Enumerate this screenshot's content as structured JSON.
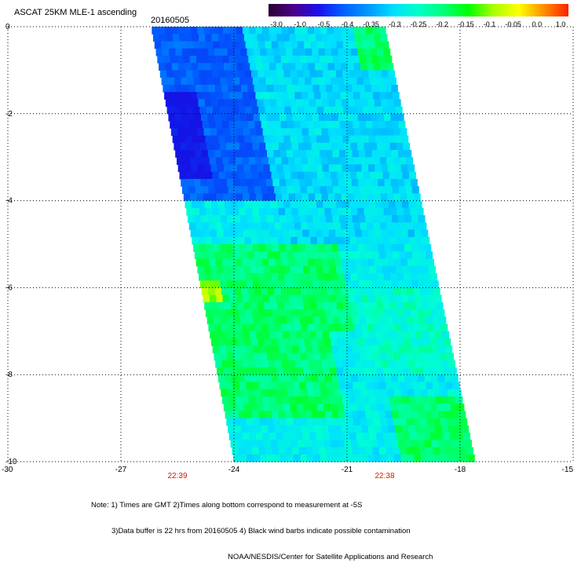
{
  "header": {
    "title": "ASCAT 25KM MLE-1 ascending",
    "date": "20160505"
  },
  "colorbar": {
    "labels": [
      "-3.0",
      "-1.0",
      "-0.5",
      "-0.4",
      "-0.35",
      "-0.3",
      "-0.25",
      "-0.2",
      "-0.15",
      "-0.1",
      "-0.05",
      "0.0",
      "1.0"
    ],
    "colors": [
      "#2a0030",
      "#4b0088",
      "#1a10ee",
      "#0060ff",
      "#0098ff",
      "#00e0ff",
      "#00ffc8",
      "#00ff78",
      "#00ff00",
      "#a8ff00",
      "#ffff00",
      "#ff9000",
      "#ff2000"
    ]
  },
  "notes": {
    "line1": "Note: 1) Times are GMT 2)Times along bottom correspond to measurement at -5S",
    "line2": "3)Data buffer is 22 hrs from 20160505 4) Black wind barbs indicate possible contamination",
    "line3": "NOAA/NESDIS/Center for Satellite Applications and Research"
  },
  "chart_data": {
    "type": "heatmap",
    "x_ticks": [
      {
        "value": -30,
        "label": "-30"
      },
      {
        "value": -27,
        "label": "-27"
      },
      {
        "value": -24,
        "label": "-24"
      },
      {
        "value": -21,
        "label": "-21"
      },
      {
        "value": -18,
        "label": "-18"
      },
      {
        "value": -15,
        "label": "-15"
      }
    ],
    "y_ticks": [
      {
        "value": 0,
        "label": "0"
      },
      {
        "value": -2,
        "label": "-2"
      },
      {
        "value": -4,
        "label": "-4"
      },
      {
        "value": -6,
        "label": "-6"
      },
      {
        "value": -8,
        "label": "-8"
      },
      {
        "value": -10,
        "label": "-10"
      }
    ],
    "xlim": [
      -30,
      -15
    ],
    "ylim": [
      -10,
      0
    ],
    "grid": true,
    "time_labels": [
      {
        "lon": -25.5,
        "label": "22:39"
      },
      {
        "lon": -20.0,
        "label": "22:38"
      }
    ],
    "swath": {
      "top_left_lon": -26.2,
      "top_right_lon": -20.0,
      "bottom_left_lon": -24.0,
      "bottom_right_lon": -17.6,
      "lat_top": 0,
      "lat_bottom": -10
    },
    "regions": [
      {
        "lat": [
          0,
          -4
        ],
        "lon_frac": [
          0,
          0.4
        ],
        "value": -0.4
      },
      {
        "lat": [
          -1.5,
          -3.5
        ],
        "lon_frac": [
          0,
          0.15
        ],
        "value": -0.5
      },
      {
        "lat": [
          0,
          -5
        ],
        "lon_frac": [
          0.4,
          1
        ],
        "value": -0.3
      },
      {
        "lat": [
          0,
          -1
        ],
        "lon_frac": [
          0.85,
          1
        ],
        "value": -0.2
      },
      {
        "lat": [
          -5,
          -7
        ],
        "lon_frac": [
          0,
          0.6
        ],
        "value": -0.2
      },
      {
        "lat": [
          -5.8,
          -6.3
        ],
        "lon_frac": [
          0,
          0.08
        ],
        "value": -0.1
      },
      {
        "lat": [
          -7,
          -9
        ],
        "lon_frac": [
          0,
          0.5
        ],
        "value": -0.2
      },
      {
        "lat": [
          -6,
          -8
        ],
        "lon_frac": [
          0.6,
          1
        ],
        "value": -0.25
      },
      {
        "lat": [
          -8.5,
          -10
        ],
        "lon_frac": [
          0.7,
          1
        ],
        "value": -0.2
      }
    ]
  }
}
